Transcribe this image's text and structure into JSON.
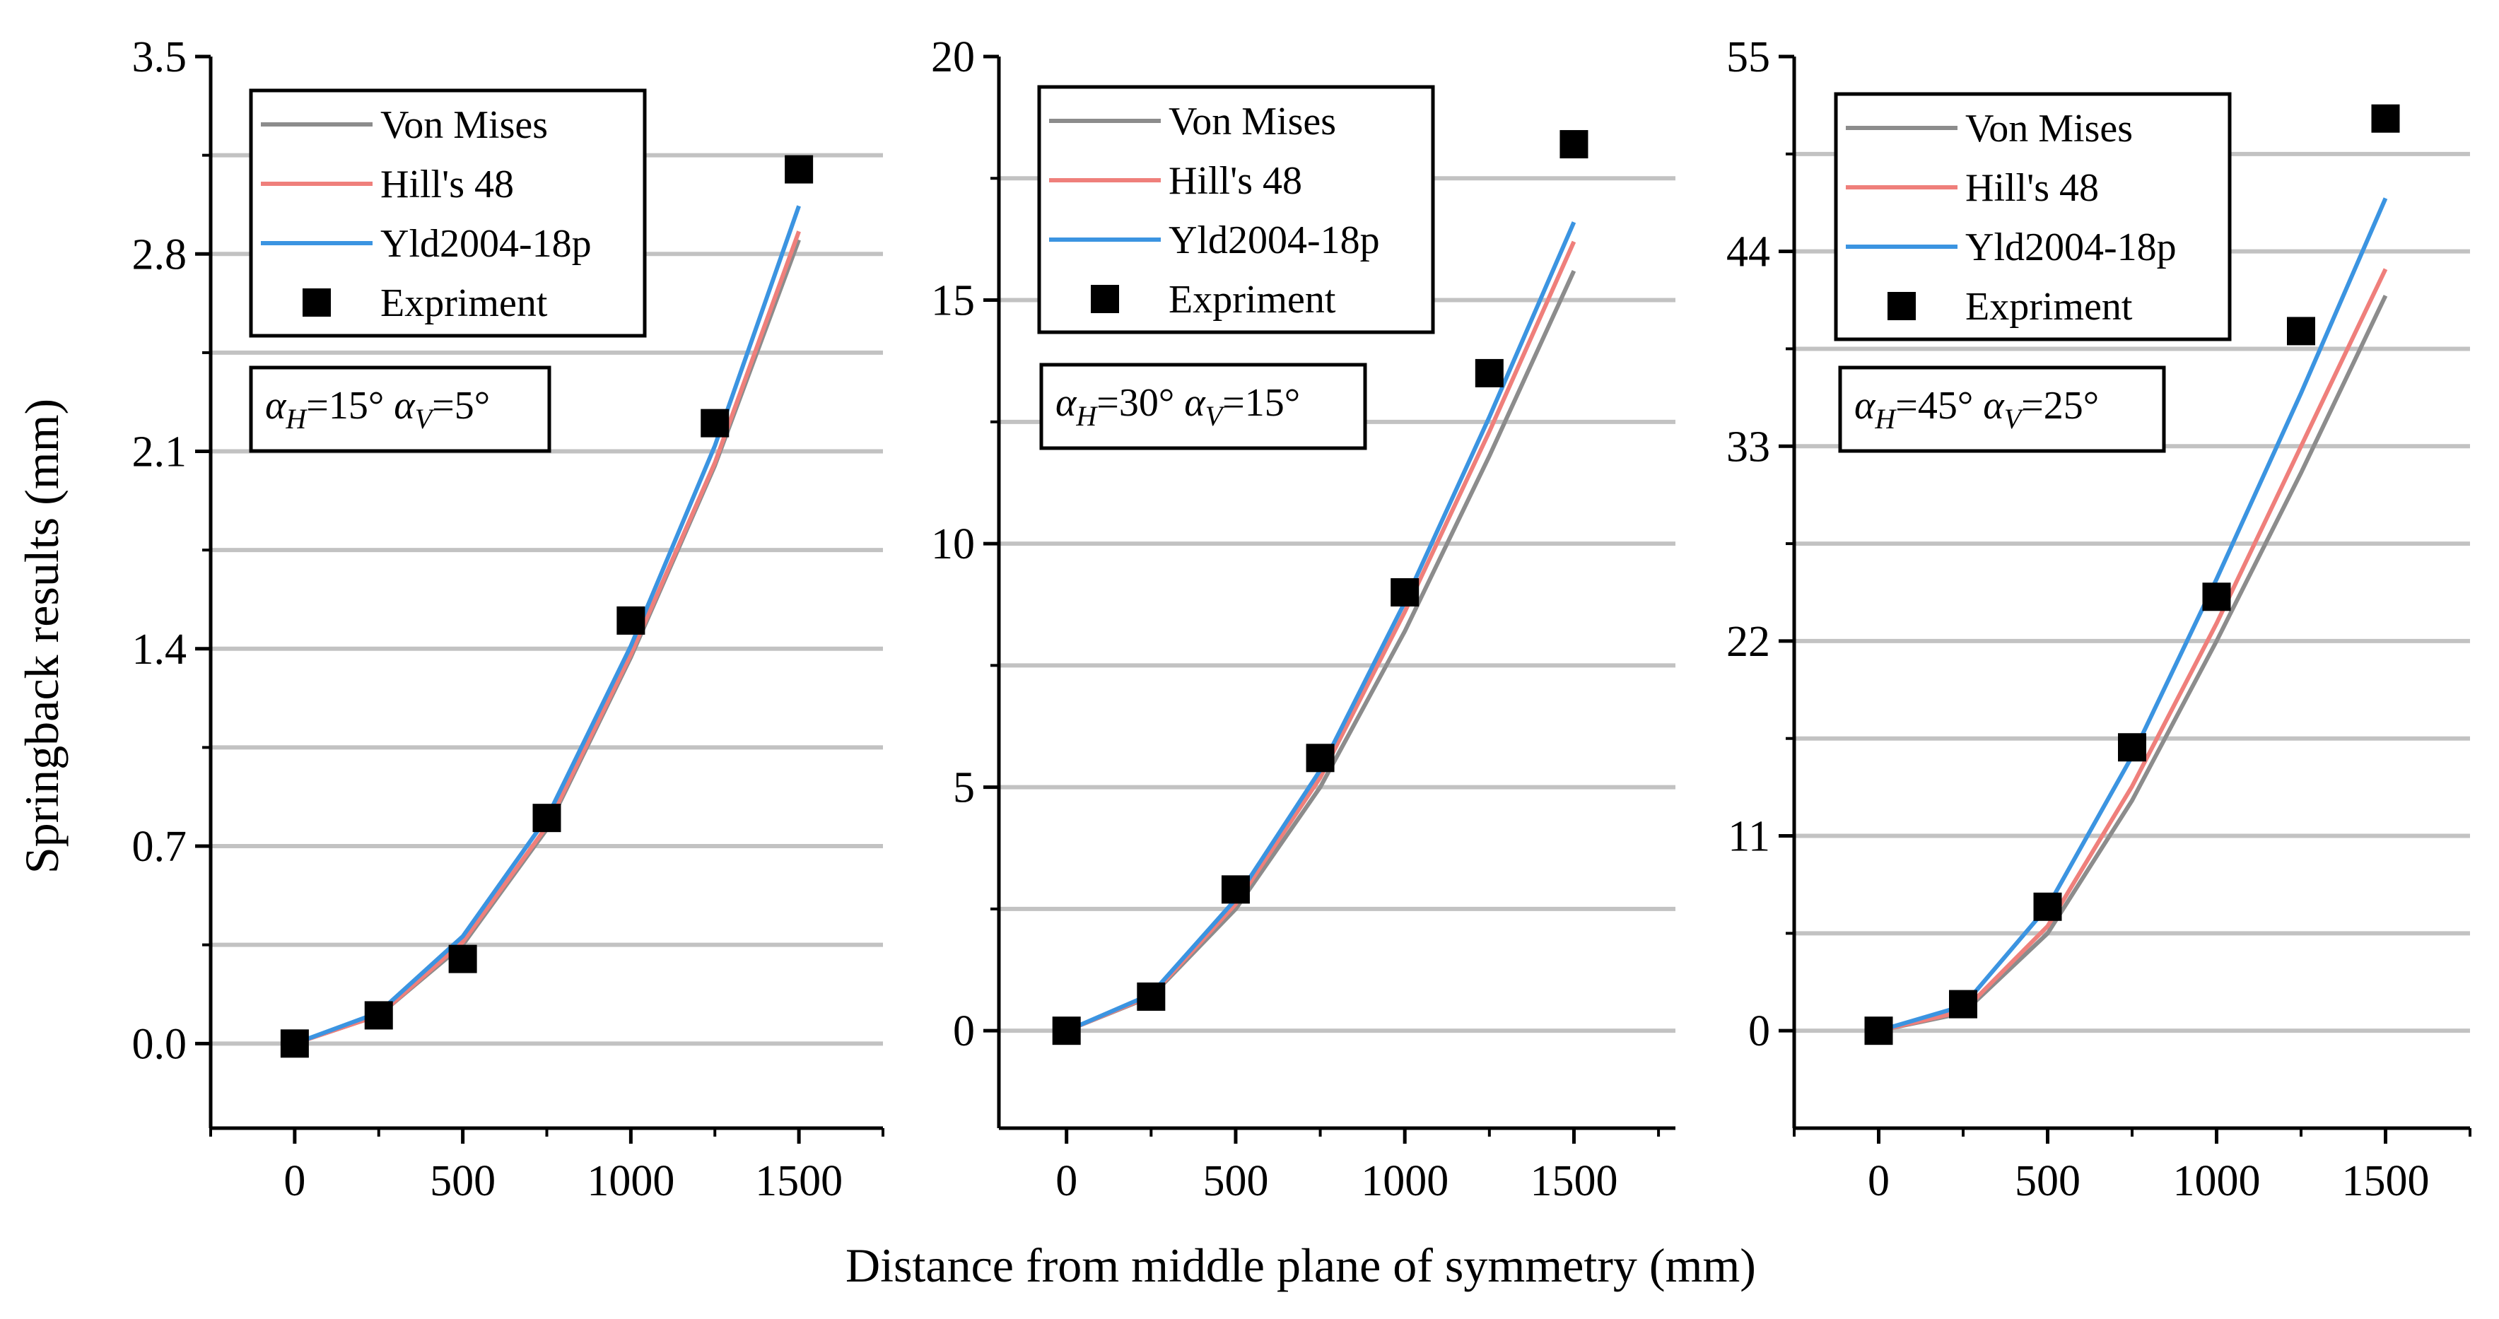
{
  "figure": {
    "ylabel": "Springback results (mm)",
    "xlabel": "Distance from middle plane of symmetry (mm)"
  },
  "legend": {
    "entries": [
      {
        "name": "Von Mises",
        "color": "#8c8c8c",
        "marker": "line"
      },
      {
        "name": "Hill's 48",
        "color": "#ef7f7b",
        "marker": "line"
      },
      {
        "name": "Yld2004-18p",
        "color": "#3b94e1",
        "marker": "line"
      },
      {
        "name": "Expriment",
        "color": "#000000",
        "marker": "square"
      }
    ]
  },
  "chart_data": [
    {
      "type": "line",
      "annotation": {
        "alpha_sym": "α",
        "h_sub": "H",
        "v_sub": "V",
        "h_val": "=15°",
        "v_val": "=5°"
      },
      "xlim": [
        -250,
        1750
      ],
      "ylim": [
        -0.3,
        3.5
      ],
      "xticks": [
        0,
        500,
        1000,
        1500
      ],
      "xtick_labels": [
        "0",
        "500",
        "1000",
        "1500"
      ],
      "yticks": [
        0.0,
        0.7,
        1.4,
        2.1,
        2.8,
        3.5
      ],
      "ytick_labels": [
        "0.0",
        "0.7",
        "1.4",
        "2.1",
        "2.8",
        "3.5"
      ],
      "grid_y": [
        0.35,
        1.05,
        1.75,
        2.45,
        3.15
      ],
      "series": [
        {
          "name": "Von Mises",
          "x": [
            0,
            250,
            500,
            750,
            1000,
            1250,
            1500
          ],
          "y": [
            0,
            0.1,
            0.35,
            0.76,
            1.37,
            2.05,
            2.85
          ]
        },
        {
          "name": "Hill's 48",
          "x": [
            0,
            250,
            500,
            750,
            1000,
            1250,
            1500
          ],
          "y": [
            0,
            0.1,
            0.36,
            0.77,
            1.38,
            2.06,
            2.88
          ]
        },
        {
          "name": "Yld2004-18p",
          "x": [
            0,
            250,
            500,
            750,
            1000,
            1250,
            1500
          ],
          "y": [
            0,
            0.11,
            0.38,
            0.8,
            1.41,
            2.12,
            2.97
          ]
        },
        {
          "name": "Expriment",
          "x": [
            0,
            250,
            500,
            750,
            1000,
            1250,
            1500
          ],
          "y": [
            0,
            0.1,
            0.3,
            0.8,
            1.5,
            2.2,
            3.1
          ]
        }
      ]
    },
    {
      "type": "line",
      "annotation": {
        "alpha_sym": "α",
        "h_sub": "H",
        "v_sub": "V",
        "h_val": "=30°",
        "v_val": "=15°"
      },
      "xlim": [
        -200,
        1800
      ],
      "ylim": [
        -2,
        20
      ],
      "xticks": [
        0,
        500,
        1000,
        1500
      ],
      "xtick_labels": [
        "0",
        "500",
        "1000",
        "1500"
      ],
      "yticks": [
        0,
        5,
        10,
        15,
        20
      ],
      "ytick_labels": [
        "0",
        "5",
        "10",
        "15",
        "20"
      ],
      "grid_y": [
        2.5,
        7.5,
        12.5,
        17.5
      ],
      "series": [
        {
          "name": "Von Mises",
          "x": [
            0,
            250,
            500,
            750,
            1000,
            1250,
            1500
          ],
          "y": [
            0,
            0.7,
            2.5,
            5.0,
            8.2,
            11.8,
            15.6
          ]
        },
        {
          "name": "Hill's 48",
          "x": [
            0,
            250,
            500,
            750,
            1000,
            1250,
            1500
          ],
          "y": [
            0,
            0.72,
            2.6,
            5.2,
            8.6,
            12.3,
            16.2
          ]
        },
        {
          "name": "Yld2004-18p",
          "x": [
            0,
            250,
            500,
            750,
            1000,
            1250,
            1500
          ],
          "y": [
            0,
            0.75,
            2.7,
            5.35,
            8.8,
            12.6,
            16.6
          ]
        },
        {
          "name": "Expriment",
          "x": [
            0,
            250,
            500,
            750,
            1000,
            1250,
            1500
          ],
          "y": [
            0,
            0.7,
            2.9,
            5.6,
            9.0,
            13.5,
            18.2
          ]
        }
      ]
    },
    {
      "type": "line",
      "annotation": {
        "alpha_sym": "α",
        "h_sub": "H",
        "v_sub": "V",
        "h_val": "=45°",
        "v_val": "=25°"
      },
      "xlim": [
        -250,
        1750
      ],
      "ylim": [
        -5.5,
        55
      ],
      "xticks": [
        0,
        500,
        1000,
        1500
      ],
      "xtick_labels": [
        "0",
        "500",
        "1000",
        "1500"
      ],
      "yticks": [
        0,
        11,
        22,
        33,
        44,
        55
      ],
      "ytick_labels": [
        "0",
        "11",
        "22",
        "33",
        "44",
        "55"
      ],
      "grid_y": [
        5.5,
        16.5,
        27.5,
        38.5,
        49.5
      ],
      "series": [
        {
          "name": "Von Mises",
          "x": [
            0,
            250,
            500,
            750,
            1000,
            1250,
            1500
          ],
          "y": [
            0,
            1.0,
            5.5,
            13.0,
            22.0,
            31.5,
            41.5
          ]
        },
        {
          "name": "Hill's 48",
          "x": [
            0,
            250,
            500,
            750,
            1000,
            1250,
            1500
          ],
          "y": [
            0,
            1.1,
            5.9,
            13.8,
            23.0,
            33.0,
            43.0
          ]
        },
        {
          "name": "Yld2004-18p",
          "x": [
            0,
            250,
            500,
            750,
            1000,
            1250,
            1500
          ],
          "y": [
            0,
            1.4,
            7.0,
            15.5,
            25.5,
            36.0,
            47.0
          ]
        },
        {
          "name": "Expriment",
          "x": [
            0,
            250,
            500,
            750,
            1000,
            1250,
            1500
          ],
          "y": [
            0,
            1.5,
            7.0,
            16.0,
            24.5,
            39.5,
            51.5
          ]
        }
      ]
    }
  ]
}
